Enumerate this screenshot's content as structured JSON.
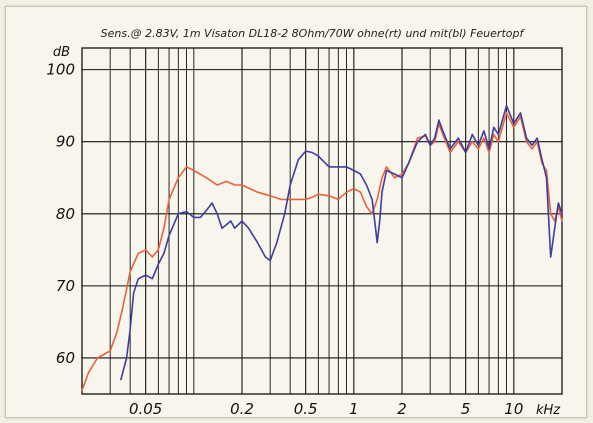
{
  "chart_data": {
    "type": "line",
    "title": "Sens.@ 2.83V, 1m Visaton DL18-2 8Ohm/70W ohne(rt) und mit(bl) Feuertopf",
    "ylabel": "dB",
    "xlabel": "kHz",
    "x_scale": "log",
    "xlim": [
      0.02,
      20
    ],
    "ylim": [
      55,
      103
    ],
    "grid": true,
    "x_ticks": [
      {
        "value": 0.05,
        "label": "0.05"
      },
      {
        "value": 0.2,
        "label": "0.2"
      },
      {
        "value": 0.5,
        "label": "0.5"
      },
      {
        "value": 1,
        "label": "1"
      },
      {
        "value": 2,
        "label": "2"
      },
      {
        "value": 5,
        "label": "5"
      },
      {
        "value": 10,
        "label": "10"
      }
    ],
    "y_ticks": [
      {
        "value": 60,
        "label": "60"
      },
      {
        "value": 70,
        "label": "70"
      },
      {
        "value": 80,
        "label": "80"
      },
      {
        "value": 90,
        "label": "90"
      },
      {
        "value": 100,
        "label": "100"
      }
    ],
    "series": [
      {
        "color": "#e8623e",
        "points": [
          [
            0.02,
            55.5
          ],
          [
            0.022,
            58
          ],
          [
            0.025,
            60
          ],
          [
            0.03,
            61
          ],
          [
            0.033,
            63.5
          ],
          [
            0.036,
            67
          ],
          [
            0.04,
            72
          ],
          [
            0.045,
            74.5
          ],
          [
            0.05,
            75
          ],
          [
            0.055,
            74
          ],
          [
            0.06,
            75
          ],
          [
            0.065,
            78
          ],
          [
            0.07,
            82
          ],
          [
            0.08,
            85
          ],
          [
            0.09,
            86.5
          ],
          [
            0.1,
            86
          ],
          [
            0.12,
            85
          ],
          [
            0.14,
            84
          ],
          [
            0.16,
            84.5
          ],
          [
            0.18,
            84
          ],
          [
            0.2,
            84
          ],
          [
            0.25,
            83
          ],
          [
            0.3,
            82.5
          ],
          [
            0.35,
            82
          ],
          [
            0.4,
            82
          ],
          [
            0.5,
            82
          ],
          [
            0.55,
            82.3
          ],
          [
            0.6,
            82.7
          ],
          [
            0.7,
            82.5
          ],
          [
            0.8,
            82
          ],
          [
            0.9,
            83
          ],
          [
            1.0,
            83.5
          ],
          [
            1.1,
            83
          ],
          [
            1.2,
            81
          ],
          [
            1.3,
            80
          ],
          [
            1.4,
            82
          ],
          [
            1.5,
            85
          ],
          [
            1.6,
            86.5
          ],
          [
            1.8,
            85
          ],
          [
            2.0,
            85.5
          ],
          [
            2.2,
            87
          ],
          [
            2.5,
            90.5
          ],
          [
            2.8,
            90.8
          ],
          [
            3.0,
            89.5
          ],
          [
            3.2,
            90
          ],
          [
            3.4,
            92.5
          ],
          [
            3.6,
            91
          ],
          [
            4.0,
            88.5
          ],
          [
            4.5,
            90
          ],
          [
            5.0,
            88.5
          ],
          [
            5.5,
            90
          ],
          [
            6.0,
            89
          ],
          [
            6.5,
            90.5
          ],
          [
            7.0,
            88.5
          ],
          [
            7.5,
            91
          ],
          [
            8.0,
            90
          ],
          [
            9.0,
            94
          ],
          [
            10,
            92
          ],
          [
            11,
            93.5
          ],
          [
            12,
            90
          ],
          [
            13,
            89
          ],
          [
            14,
            90
          ],
          [
            15,
            87
          ],
          [
            16,
            86
          ],
          [
            17,
            80
          ],
          [
            18,
            79
          ],
          [
            19,
            81
          ],
          [
            20,
            79
          ]
        ]
      },
      {
        "color": "#3f3d9e",
        "points": [
          [
            0.035,
            57
          ],
          [
            0.038,
            60
          ],
          [
            0.04,
            64
          ],
          [
            0.042,
            69
          ],
          [
            0.045,
            71
          ],
          [
            0.05,
            71.5
          ],
          [
            0.055,
            71
          ],
          [
            0.06,
            73
          ],
          [
            0.065,
            74.5
          ],
          [
            0.07,
            77
          ],
          [
            0.08,
            80
          ],
          [
            0.09,
            80.3
          ],
          [
            0.1,
            79.5
          ],
          [
            0.11,
            79.5
          ],
          [
            0.12,
            80.5
          ],
          [
            0.13,
            81.5
          ],
          [
            0.14,
            80
          ],
          [
            0.15,
            78
          ],
          [
            0.16,
            78.5
          ],
          [
            0.17,
            79
          ],
          [
            0.18,
            78
          ],
          [
            0.2,
            79
          ],
          [
            0.22,
            78
          ],
          [
            0.25,
            76
          ],
          [
            0.28,
            74
          ],
          [
            0.3,
            73.5
          ],
          [
            0.33,
            76
          ],
          [
            0.37,
            80
          ],
          [
            0.4,
            84
          ],
          [
            0.45,
            87.5
          ],
          [
            0.5,
            88.7
          ],
          [
            0.55,
            88.5
          ],
          [
            0.6,
            88
          ],
          [
            0.7,
            86.5
          ],
          [
            0.8,
            86.5
          ],
          [
            0.9,
            86.5
          ],
          [
            1.0,
            86
          ],
          [
            1.1,
            85.5
          ],
          [
            1.2,
            84
          ],
          [
            1.3,
            82
          ],
          [
            1.35,
            79
          ],
          [
            1.4,
            76
          ],
          [
            1.45,
            79
          ],
          [
            1.5,
            83
          ],
          [
            1.6,
            86
          ],
          [
            1.8,
            85.5
          ],
          [
            2.0,
            85
          ],
          [
            2.2,
            87
          ],
          [
            2.5,
            90
          ],
          [
            2.8,
            91
          ],
          [
            3.0,
            89.5
          ],
          [
            3.2,
            90.5
          ],
          [
            3.4,
            93
          ],
          [
            3.6,
            91.5
          ],
          [
            4.0,
            89
          ],
          [
            4.5,
            90.5
          ],
          [
            5.0,
            88.5
          ],
          [
            5.5,
            91
          ],
          [
            6.0,
            89.5
          ],
          [
            6.5,
            91.5
          ],
          [
            7.0,
            89
          ],
          [
            7.5,
            92
          ],
          [
            8.0,
            91
          ],
          [
            9.0,
            95
          ],
          [
            10,
            92.5
          ],
          [
            11,
            94
          ],
          [
            12,
            90.5
          ],
          [
            13,
            89.5
          ],
          [
            14,
            90.5
          ],
          [
            15,
            87.5
          ],
          [
            16,
            85
          ],
          [
            17,
            74
          ],
          [
            18,
            78
          ],
          [
            19,
            81.5
          ],
          [
            20,
            80
          ]
        ]
      }
    ]
  }
}
